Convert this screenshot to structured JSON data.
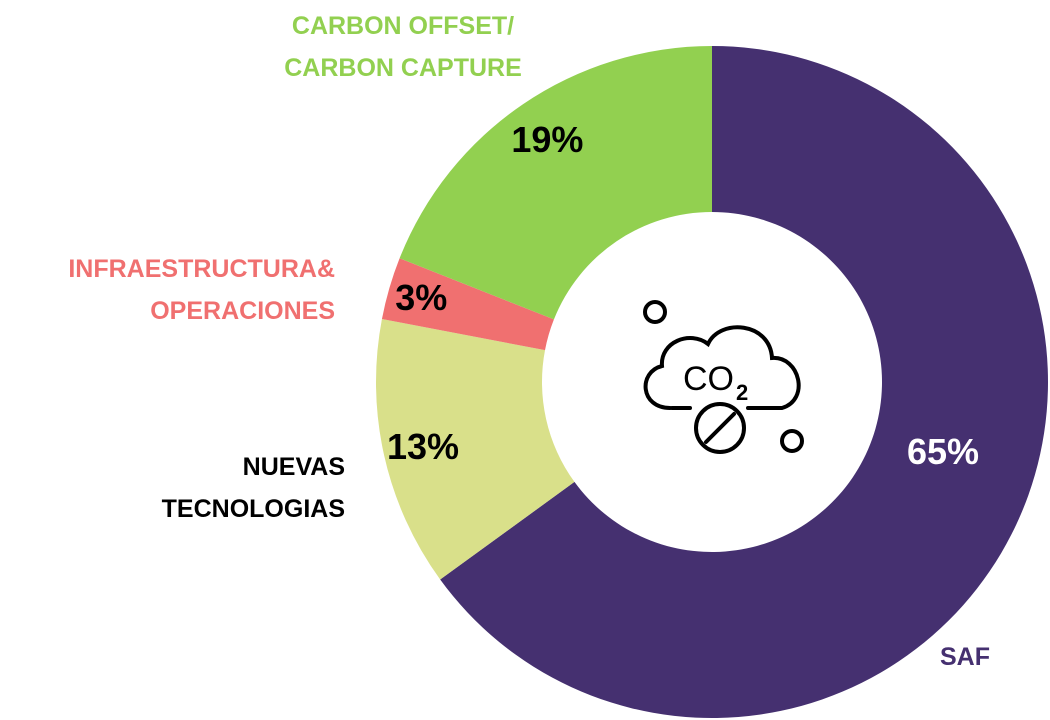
{
  "chart_data": {
    "type": "donut",
    "categories": [
      "SAF",
      "NUEVAS\nTECNOLOGIAS",
      "INFRAESTRUCTURA&\nOPERACIONES",
      "CARBON OFFSET/\nCARBON CAPTURE"
    ],
    "values": [
      65,
      13,
      3,
      19
    ],
    "value_labels": [
      "65%",
      "13%",
      "3%",
      "19%"
    ],
    "colors": [
      "#453070",
      "#d9e08a",
      "#f07070",
      "#92d050"
    ],
    "label_colors": [
      "#453070",
      "#000000",
      "#f07070",
      "#92d050"
    ],
    "value_label_colors": [
      "#ffffff",
      "#000000",
      "#000000",
      "#000000"
    ],
    "icon": {
      "text": "CO",
      "subscript": "2"
    }
  }
}
